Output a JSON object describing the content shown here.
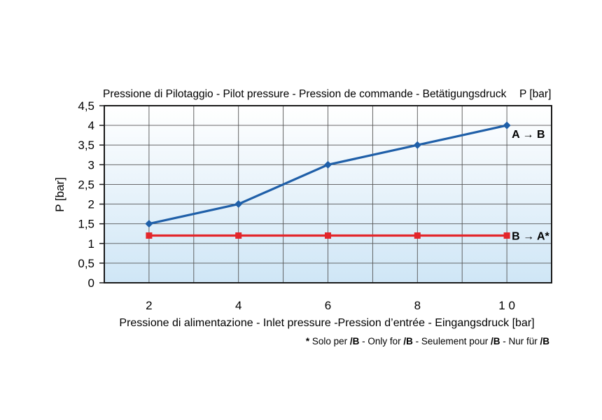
{
  "chart_data": {
    "type": "line",
    "title": "Pressione di Pilotaggio - Pilot pressure - Pression de commande - Betätigungsdruck",
    "title_unit": "P [bar]",
    "ylabel": "P [bar]",
    "xlabel": "Pressione di alimentazione - Inlet pressure -Pression d’entrée - Eingangsdruck [bar]",
    "x": [
      2,
      4,
      6,
      8,
      10
    ],
    "xlim": [
      1,
      11
    ],
    "ylim": [
      0,
      4.5
    ],
    "x_tick_labels": [
      "2",
      "4",
      "6",
      "8",
      "1 0"
    ],
    "y_ticks": [
      0,
      0.5,
      1,
      1.5,
      2,
      2.5,
      3,
      3.5,
      4,
      4.5
    ],
    "y_tick_labels": [
      "0",
      "0,5",
      "1",
      "1,5",
      "2",
      "2,5",
      "3",
      "3,5",
      "4",
      "4,5"
    ],
    "grid": true,
    "series": [
      {
        "name": "A → B",
        "values": [
          1.5,
          2,
          3,
          3.5,
          4
        ],
        "color": "#1f5fa8",
        "marker": "diamond"
      },
      {
        "name": "B → A*",
        "values": [
          1.2,
          1.2,
          1.2,
          1.2,
          1.2
        ],
        "color": "#e3262b",
        "marker": "square"
      }
    ],
    "background_gradient": [
      "#ffffff",
      "#cfe6f6"
    ]
  },
  "footnote": {
    "star": "*",
    "parts": [
      {
        "text": " Solo per ",
        "bold": false
      },
      {
        "text": "/B",
        "bold": true
      },
      {
        "text": " - Only for  ",
        "bold": false
      },
      {
        "text": "/B",
        "bold": true
      },
      {
        "text": " - Seulement pour  ",
        "bold": false
      },
      {
        "text": "/B",
        "bold": true
      },
      {
        "text": " - Nur für  ",
        "bold": false
      },
      {
        "text": "/B",
        "bold": true
      }
    ]
  }
}
